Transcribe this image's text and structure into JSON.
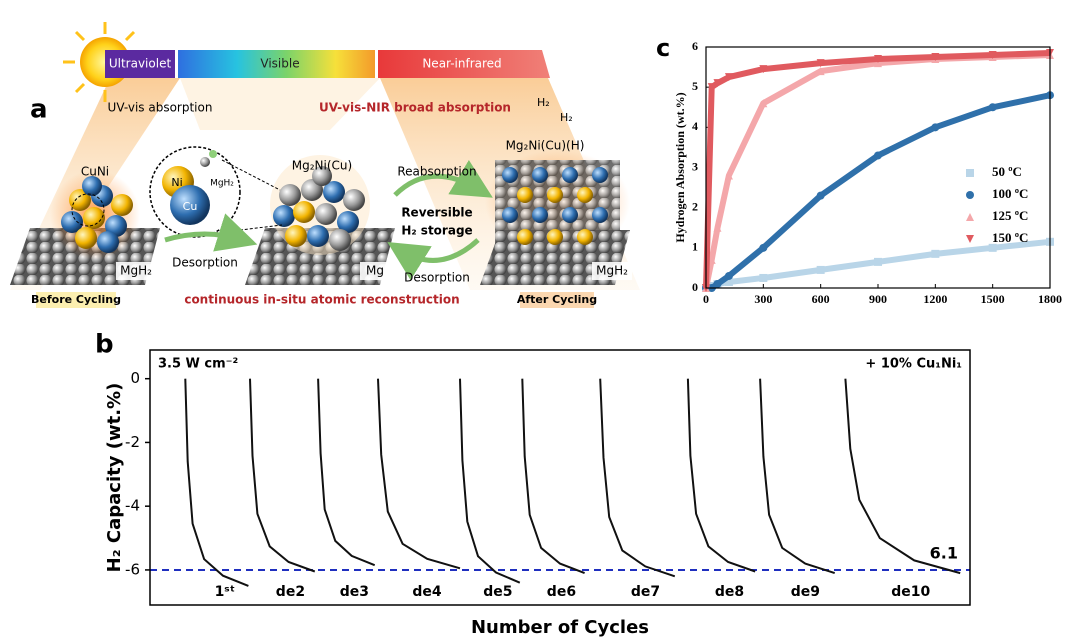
{
  "schematic": {
    "label": "a",
    "spectrum": [
      "Ultraviolet",
      "Visible",
      "Near-infrared"
    ],
    "uv_vis": "UV-vis absorption",
    "broad": "UV-vis-NIR broad absorption",
    "h2_a": "H₂",
    "h2_b": "H₂",
    "after_phase": "Mg₂Ni(Cu)(H)",
    "cuni": "CuNi",
    "ni": "Ni",
    "cu": "Cu",
    "mgh2_small": "MgH₂",
    "mid_phase": "Mg₂Ni(Cu)",
    "reabsorption": "Reabsorption",
    "reversible": "Reversible",
    "storage": "H₂ storage",
    "desorption_1": "Desorption",
    "desorption_2": "Desorption",
    "substrate_left": "MgH₂",
    "substrate_mid": "Mg",
    "substrate_right": "MgH₂",
    "before": "Before Cycling",
    "reconstruction": "continuous in-situ atomic reconstruction",
    "after": "After Cycling"
  },
  "chart_data": [
    {
      "type": "scatter",
      "label": "c",
      "ylabel": "Hydrogen Absorption (wt.%)",
      "x": [
        0,
        30,
        60,
        120,
        300,
        600,
        900,
        1200,
        1500,
        1800
      ],
      "series": [
        {
          "name": "50 ºC",
          "color": "#b9d5e8",
          "marker": "square",
          "values": [
            0,
            0.05,
            0.1,
            0.15,
            0.25,
            0.45,
            0.65,
            0.85,
            1.0,
            1.15
          ]
        },
        {
          "name": "100 ºC",
          "color": "#2f70aa",
          "marker": "circle",
          "values": [
            0,
            0,
            0.1,
            0.3,
            1.0,
            2.3,
            3.3,
            4.0,
            4.5,
            4.8
          ]
        },
        {
          "name": "125 ºC",
          "color": "#f4a7aa",
          "marker": "triangle-up",
          "values": [
            0,
            0.7,
            1.5,
            2.8,
            4.6,
            5.4,
            5.6,
            5.7,
            5.75,
            5.8
          ]
        },
        {
          "name": "150 ºC",
          "color": "#e05a5f",
          "marker": "triangle-down",
          "values": [
            0,
            5.0,
            5.1,
            5.25,
            5.45,
            5.6,
            5.7,
            5.75,
            5.8,
            5.85
          ]
        }
      ],
      "xlim": [
        0,
        1800
      ],
      "ylim": [
        0,
        6
      ],
      "xticks": [
        0,
        300,
        600,
        900,
        1200,
        1500,
        1800
      ],
      "yticks": [
        0,
        1,
        2,
        3,
        4,
        5,
        6
      ],
      "legend": "right"
    },
    {
      "type": "line",
      "label": "b",
      "ylabel": "H₂ Capacity (wt.%)",
      "xlabel": "Number of Cycles",
      "annotations": [
        "3.5 W cm⁻²",
        "+ 10% Cu₁Ni₁",
        "6.1"
      ],
      "reference_line": {
        "value": -6,
        "color": "#1f2fbf"
      },
      "xlim": [
        0,
        100
      ],
      "ylim": [
        -7.1,
        0.9
      ],
      "yticks": [
        0,
        -2,
        -4,
        -6
      ],
      "series": [
        {
          "name": "1ˢᵗ",
          "color": "#111111",
          "x": [
            4.3,
            4.6,
            5.2,
            6.6,
            8.9,
            12.0
          ],
          "values": [
            0,
            -2.6,
            -4.55,
            -5.66,
            -6.18,
            -6.5
          ]
        },
        {
          "name": "de2",
          "color": "#111111",
          "x": [
            12.2,
            12.5,
            13.1,
            14.6,
            16.9,
            20.1
          ],
          "values": [
            0,
            -2.42,
            -4.24,
            -5.26,
            -5.75,
            -6.05
          ]
        },
        {
          "name": "de3",
          "color": "#111111",
          "x": [
            20.5,
            20.8,
            21.3,
            22.6,
            24.6,
            27.4
          ],
          "values": [
            0,
            -2.34,
            -4.1,
            -5.09,
            -5.56,
            -5.85
          ]
        },
        {
          "name": "de4",
          "color": "#111111",
          "x": [
            27.8,
            28.2,
            29.0,
            30.8,
            33.8,
            37.8
          ],
          "values": [
            0,
            -2.38,
            -4.17,
            -5.18,
            -5.65,
            -5.95
          ]
        },
        {
          "name": "de5",
          "color": "#111111",
          "x": [
            37.8,
            38.1,
            38.7,
            40.0,
            42.2,
            45.1
          ],
          "values": [
            0,
            -2.56,
            -4.48,
            -5.57,
            -6.08,
            -6.4
          ]
        },
        {
          "name": "de6",
          "color": "#111111",
          "x": [
            45.4,
            45.7,
            46.3,
            47.7,
            50.0,
            53.0
          ],
          "values": [
            0,
            -2.44,
            -4.27,
            -5.31,
            -5.8,
            -6.1
          ]
        },
        {
          "name": "de7",
          "color": "#111111",
          "x": [
            54.9,
            55.3,
            56.0,
            57.6,
            60.4,
            64.0
          ],
          "values": [
            0,
            -2.48,
            -4.34,
            -5.39,
            -5.89,
            -6.2
          ]
        },
        {
          "name": "de8",
          "color": "#111111",
          "x": [
            65.6,
            65.9,
            66.6,
            68.1,
            70.5,
            73.8
          ],
          "values": [
            0,
            -2.42,
            -4.24,
            -5.26,
            -5.75,
            -6.05
          ]
        },
        {
          "name": "de9",
          "color": "#111111",
          "x": [
            74.4,
            74.8,
            75.5,
            77.1,
            79.9,
            83.5
          ],
          "values": [
            0,
            -2.44,
            -4.27,
            -5.31,
            -5.8,
            -6.1
          ]
        },
        {
          "name": "de10",
          "color": "#111111",
          "x": [
            84.8,
            85.4,
            86.5,
            89.0,
            93.2,
            98.8
          ],
          "values": [
            0,
            -2.2,
            -3.8,
            -5.0,
            -5.7,
            -6.1
          ]
        }
      ]
    }
  ]
}
